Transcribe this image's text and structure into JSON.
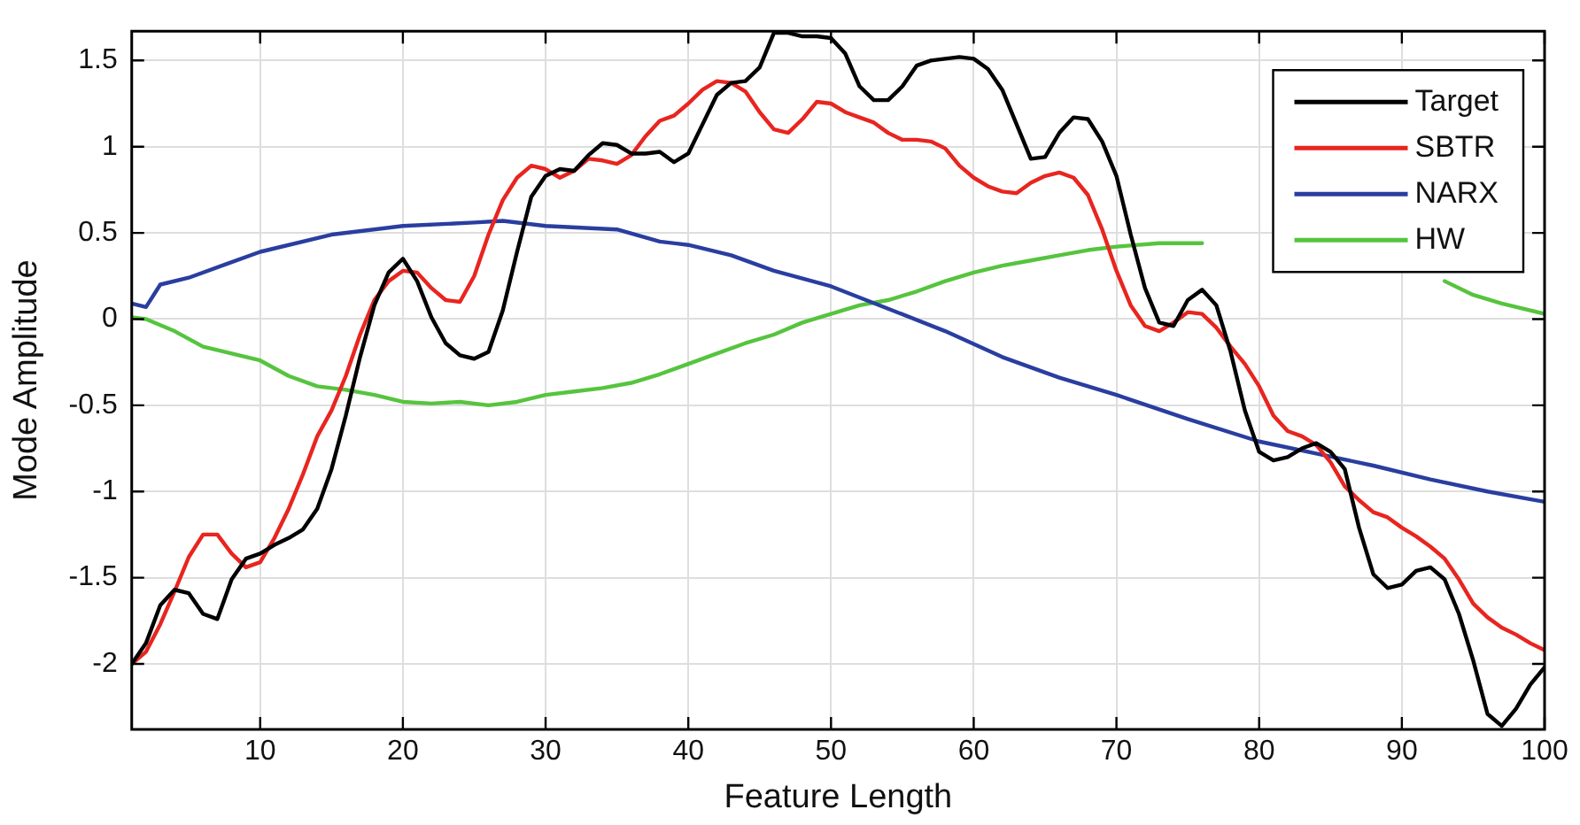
{
  "chart_data": {
    "type": "line",
    "xlabel": "Feature Length",
    "ylabel": "Mode Amplitude",
    "xlim": [
      1,
      100
    ],
    "xticks": [
      10,
      20,
      30,
      40,
      50,
      60,
      70,
      80,
      90,
      100
    ],
    "ylim": [
      -2.38,
      1.67
    ],
    "yticks": [
      -2,
      -1.5,
      -1,
      -0.5,
      0,
      0.5,
      1,
      1.5
    ],
    "grid": true,
    "legend": "top right",
    "marker": "none",
    "line_style": "solid",
    "series": [
      {
        "name": "Target",
        "color": "#000000",
        "x": [
          1,
          2,
          3,
          4,
          5,
          6,
          7,
          8,
          9,
          10,
          11,
          12,
          13,
          14,
          15,
          16,
          17,
          18,
          19,
          20,
          21,
          22,
          23,
          24,
          25,
          26,
          27,
          28,
          29,
          30,
          31,
          32,
          33,
          34,
          35,
          36,
          37,
          38,
          39,
          40,
          41,
          42,
          43,
          44,
          45,
          46,
          47,
          48,
          49,
          50,
          51,
          52,
          53,
          54,
          55,
          56,
          57,
          58,
          59,
          60,
          61,
          62,
          63,
          64,
          65,
          66,
          67,
          68,
          69,
          70,
          71,
          72,
          73,
          74,
          75,
          76,
          77,
          78,
          79,
          80,
          81,
          82,
          83,
          84,
          85,
          86,
          87,
          88,
          89,
          90,
          91,
          92,
          93,
          94,
          95,
          96,
          97,
          98,
          99,
          100
        ],
        "values": [
          -2.0,
          -1.88,
          -1.66,
          -1.57,
          -1.59,
          -1.71,
          -1.74,
          -1.51,
          -1.39,
          -1.36,
          -1.31,
          -1.27,
          -1.22,
          -1.1,
          -0.87,
          -0.56,
          -0.22,
          0.08,
          0.27,
          0.35,
          0.22,
          0.01,
          -0.14,
          -0.21,
          -0.23,
          -0.19,
          0.05,
          0.39,
          0.71,
          0.83,
          0.87,
          0.86,
          0.95,
          1.02,
          1.01,
          0.96,
          0.96,
          0.97,
          0.91,
          0.96,
          1.13,
          1.3,
          1.37,
          1.38,
          1.46,
          1.66,
          1.66,
          1.64,
          1.64,
          1.63,
          1.54,
          1.35,
          1.27,
          1.27,
          1.35,
          1.47,
          1.5,
          1.51,
          1.52,
          1.51,
          1.45,
          1.33,
          1.13,
          0.93,
          0.94,
          1.08,
          1.17,
          1.16,
          1.03,
          0.83,
          0.49,
          0.18,
          -0.02,
          -0.04,
          0.11,
          0.17,
          0.08,
          -0.19,
          -0.53,
          -0.77,
          -0.82,
          -0.8,
          -0.75,
          -0.72,
          -0.77,
          -0.87,
          -1.21,
          -1.48,
          -1.56,
          -1.54,
          -1.46,
          -1.44,
          -1.51,
          -1.71,
          -1.98,
          -2.29,
          -2.36,
          -2.26,
          -2.12,
          -2.02
        ]
      },
      {
        "name": "SBTR",
        "color": "#e8251f",
        "x": [
          1,
          2,
          3,
          4,
          5,
          6,
          7,
          8,
          9,
          10,
          11,
          12,
          13,
          14,
          15,
          16,
          17,
          18,
          19,
          20,
          21,
          22,
          23,
          24,
          25,
          26,
          27,
          28,
          29,
          30,
          31,
          32,
          33,
          34,
          35,
          36,
          37,
          38,
          39,
          40,
          41,
          42,
          43,
          44,
          45,
          46,
          47,
          48,
          49,
          50,
          51,
          52,
          53,
          54,
          55,
          56,
          57,
          58,
          59,
          60,
          61,
          62,
          63,
          64,
          65,
          66,
          67,
          68,
          69,
          70,
          71,
          72,
          73,
          74,
          75,
          76,
          77,
          78,
          79,
          80,
          81,
          82,
          83,
          84,
          85,
          86,
          87,
          88,
          89,
          90,
          91,
          92,
          93,
          94,
          95,
          96,
          97,
          98,
          99,
          100
        ],
        "values": [
          -2.0,
          -1.93,
          -1.77,
          -1.58,
          -1.38,
          -1.25,
          -1.25,
          -1.36,
          -1.44,
          -1.41,
          -1.27,
          -1.1,
          -0.9,
          -0.68,
          -0.53,
          -0.33,
          -0.09,
          0.11,
          0.22,
          0.28,
          0.27,
          0.18,
          0.11,
          0.1,
          0.25,
          0.49,
          0.69,
          0.82,
          0.89,
          0.87,
          0.82,
          0.86,
          0.93,
          0.92,
          0.9,
          0.95,
          1.06,
          1.15,
          1.18,
          1.25,
          1.33,
          1.38,
          1.37,
          1.32,
          1.2,
          1.1,
          1.08,
          1.16,
          1.26,
          1.25,
          1.2,
          1.17,
          1.14,
          1.08,
          1.04,
          1.04,
          1.03,
          0.99,
          0.89,
          0.82,
          0.77,
          0.74,
          0.73,
          0.79,
          0.83,
          0.85,
          0.82,
          0.72,
          0.52,
          0.28,
          0.08,
          -0.04,
          -0.07,
          -0.02,
          0.04,
          0.03,
          -0.05,
          -0.16,
          -0.26,
          -0.39,
          -0.56,
          -0.65,
          -0.68,
          -0.73,
          -0.83,
          -0.97,
          -1.05,
          -1.12,
          -1.15,
          -1.21,
          -1.26,
          -1.32,
          -1.39,
          -1.51,
          -1.65,
          -1.73,
          -1.79,
          -1.83,
          -1.88,
          -1.92
        ]
      },
      {
        "name": "NARX",
        "color": "#2a3ea0",
        "x": [
          1,
          2,
          3,
          5,
          10,
          15,
          20,
          25,
          27,
          30,
          35,
          38,
          40,
          43,
          46,
          50,
          54,
          58,
          62,
          66,
          70,
          75,
          80,
          84,
          88,
          92,
          96,
          100
        ],
        "values": [
          0.09,
          0.07,
          0.2,
          0.24,
          0.39,
          0.49,
          0.54,
          0.56,
          0.57,
          0.54,
          0.52,
          0.45,
          0.43,
          0.37,
          0.28,
          0.19,
          0.06,
          -0.07,
          -0.22,
          -0.34,
          -0.44,
          -0.58,
          -0.71,
          -0.78,
          -0.85,
          -0.93,
          -1.0,
          -1.06
        ]
      },
      {
        "name": "HW",
        "color": "#56c43e",
        "x": [
          1,
          2,
          4,
          6,
          8,
          10,
          12,
          14,
          16,
          18,
          20,
          22,
          24,
          26,
          28,
          30,
          32,
          34,
          36,
          38,
          40,
          42,
          44,
          46,
          48,
          50,
          52,
          54,
          56,
          58,
          60,
          62,
          64,
          66,
          68,
          70,
          73,
          76,
          80,
          85,
          90,
          93,
          95,
          97,
          100
        ],
        "values": [
          0.01,
          0.0,
          -0.07,
          -0.16,
          -0.2,
          -0.24,
          -0.33,
          -0.39,
          -0.41,
          -0.44,
          -0.48,
          -0.49,
          -0.48,
          -0.5,
          -0.48,
          -0.44,
          -0.42,
          -0.4,
          -0.37,
          -0.32,
          -0.26,
          -0.2,
          -0.14,
          -0.09,
          -0.02,
          0.03,
          0.08,
          0.11,
          0.16,
          0.22,
          0.27,
          0.31,
          0.34,
          0.37,
          0.4,
          0.42,
          0.44,
          0.44,
          null,
          null,
          null,
          0.22,
          0.14,
          0.09,
          0.03
        ]
      }
    ]
  }
}
